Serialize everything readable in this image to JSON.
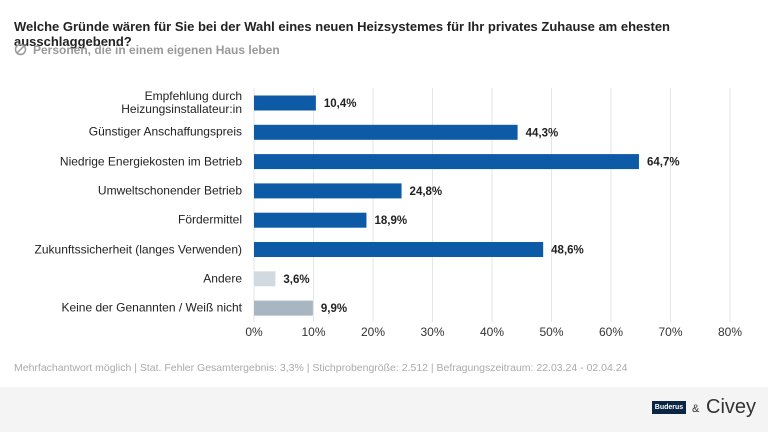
{
  "header": {
    "title": "Welche Gründe wären für Sie bei der Wahl eines neuen Heizsystemes für Ihr privates Zuhause am ehesten ausschlaggebend?",
    "subtitle": "Personen, die in einem eigenen Haus leben"
  },
  "chart_data": {
    "type": "bar",
    "orientation": "horizontal",
    "categories": [
      "Empfehlung durch\nHeizungsinstallateur:in",
      "Günstiger Anschaffungspreis",
      "Niedrige Energiekosten im Betrieb",
      "Umweltschonender Betrieb",
      "Fördermittel",
      "Zukunftssicherheit (langes Verwenden)",
      "Andere",
      "Keine der Genannten / Weiß nicht"
    ],
    "values": [
      10.4,
      44.3,
      64.7,
      24.8,
      18.9,
      48.6,
      3.6,
      9.9
    ],
    "value_labels": [
      "10,4%",
      "44,3%",
      "64,7%",
      "24,8%",
      "18,9%",
      "48,6%",
      "3,6%",
      "9,9%"
    ],
    "colors": [
      "#0d5aa7",
      "#0d5aa7",
      "#0d5aa7",
      "#0d5aa7",
      "#0d5aa7",
      "#0d5aa7",
      "#d2dadf",
      "#a8b6c2"
    ],
    "xlim": [
      0,
      80
    ],
    "xticks": [
      {
        "value": 0,
        "label": "0%"
      },
      {
        "value": 10,
        "label": "10%"
      },
      {
        "value": 20,
        "label": "20%"
      },
      {
        "value": 30,
        "label": "30%"
      },
      {
        "value": 40,
        "label": "40%"
      },
      {
        "value": 50,
        "label": "50%"
      },
      {
        "value": 60,
        "label": "60%"
      },
      {
        "value": 70,
        "label": "70%"
      },
      {
        "value": 80,
        "label": "80%"
      }
    ],
    "grid": true
  },
  "footer": {
    "note": "Mehrfachantwort möglich | Stat. Fehler Gesamtergebnis: 3,3% | Stichprobengröße: 2.512 | Befragungszeitraum: 22.03.24 - 02.04.24",
    "logo1": "Buderus",
    "separator": "&",
    "logo2": "Civey"
  }
}
